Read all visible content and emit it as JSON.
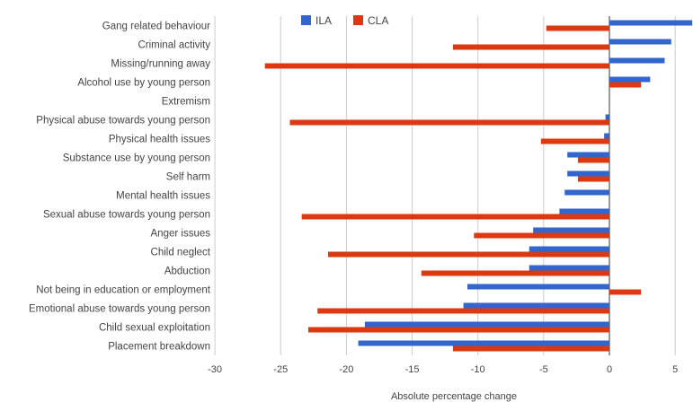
{
  "chart_data": {
    "type": "bar",
    "orientation": "horizontal",
    "categories": [
      "Gang related behaviour",
      "Criminal activity",
      "Missing/running away",
      "Alcohol use by young person",
      "Extremism",
      "Physical abuse towards young person",
      "Physical health issues",
      "Substance use by young person",
      "Self harm",
      "Mental health issues",
      "Sexual abuse towards young person",
      "Anger issues",
      "Child neglect",
      "Abduction",
      "Not being in education or employment",
      "Emotional abuse towards young person",
      "Child sexual exploitation",
      "Placement breakdown"
    ],
    "series": [
      {
        "name": "ILA",
        "color": "#3366cc",
        "values": [
          6.3,
          4.7,
          4.2,
          3.1,
          0,
          -0.3,
          -0.4,
          -3.2,
          -3.2,
          -3.4,
          -3.8,
          -5.8,
          -6.1,
          -6.1,
          -10.8,
          -11.1,
          -18.6,
          -19.1
        ]
      },
      {
        "name": "CLA",
        "color": "#dc3912",
        "values": [
          -4.8,
          -11.9,
          -26.2,
          2.4,
          0,
          -24.3,
          -5.2,
          -2.4,
          -2.4,
          0,
          -23.4,
          -10.3,
          -21.4,
          -14.3,
          2.4,
          -22.2,
          -22.9,
          -11.9
        ]
      }
    ],
    "xlabel": "Absolute percentage change",
    "ylabel": "",
    "title": "",
    "xlim": [
      -30,
      6.5
    ],
    "xticks": [
      -30,
      -25,
      -20,
      -15,
      -10,
      -5,
      0,
      5
    ],
    "grid": true,
    "legend": "top"
  }
}
